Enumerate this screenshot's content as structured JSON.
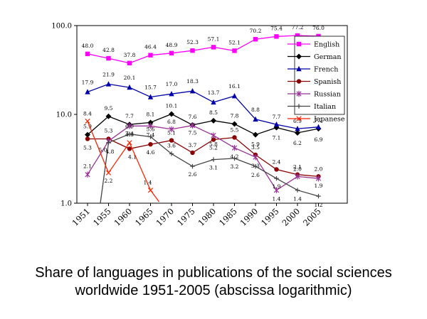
{
  "caption": {
    "line1": "Share of languages in publications of the social sciences",
    "line2": "worldwide 1951-2005 (abscissa logarithmic)"
  },
  "chart_data": {
    "type": "line",
    "x": [
      1951,
      1955,
      1960,
      1965,
      1970,
      1975,
      1980,
      1985,
      1990,
      1995,
      2000,
      2005
    ],
    "y_ticks": [
      "100.0",
      "10.0",
      "1.0"
    ],
    "y_scale": "log",
    "ylim": [
      1,
      100
    ],
    "grid": "none",
    "legend_position": "top-right",
    "series": [
      {
        "name": "English",
        "color": "#ff00ff",
        "marker": "square",
        "points": [
          [
            1951,
            48.0
          ],
          [
            1955,
            42.8
          ],
          [
            1960,
            37.8
          ],
          [
            1965,
            46.4
          ],
          [
            1970,
            48.9
          ],
          [
            1975,
            52.3
          ],
          [
            1980,
            57.1
          ],
          [
            1985,
            52.1
          ],
          [
            1990,
            70.2
          ],
          [
            1995,
            75.4
          ],
          [
            2000,
            77.2
          ],
          [
            2005,
            76.0
          ]
        ]
      },
      {
        "name": "German",
        "color": "#000000",
        "marker": "diamond",
        "points": [
          [
            1951,
            5.9
          ],
          [
            1955,
            9.5
          ],
          [
            1960,
            7.7
          ],
          [
            1965,
            8.1
          ],
          [
            1970,
            10.1
          ],
          [
            1975,
            7.6
          ],
          [
            1980,
            8.5
          ],
          [
            1985,
            7.8
          ],
          [
            1990,
            5.9
          ],
          [
            1995,
            7.1
          ],
          [
            2000,
            6.2
          ],
          [
            2005,
            6.9
          ]
        ]
      },
      {
        "name": "French",
        "color": "#0000aa",
        "marker": "triangle",
        "points": [
          [
            1951,
            17.9
          ],
          [
            1955,
            21.9
          ],
          [
            1960,
            20.1
          ],
          [
            1965,
            15.7
          ],
          [
            1970,
            17.0
          ],
          [
            1975,
            18.3
          ],
          [
            1980,
            13.7
          ],
          [
            1985,
            16.1
          ],
          [
            1990,
            8.8
          ],
          [
            1995,
            7.7
          ],
          [
            2000,
            6.9
          ],
          [
            2005,
            7.2
          ]
        ]
      },
      {
        "name": "Spanish",
        "color": "#8b0000",
        "marker": "circle",
        "points": [
          [
            1951,
            5.3
          ],
          [
            1955,
            5.3
          ],
          [
            1960,
            4.1
          ],
          [
            1965,
            4.6
          ],
          [
            1970,
            5.1
          ],
          [
            1975,
            3.7
          ],
          [
            1980,
            5.2
          ],
          [
            1985,
            5.5
          ],
          [
            1990,
            3.5
          ],
          [
            1995,
            2.4
          ],
          [
            2000,
            2.1
          ],
          [
            2005,
            2.0
          ]
        ]
      },
      {
        "name": "Russian",
        "color": "#993399",
        "marker": "star",
        "points": [
          [
            1951,
            2.1
          ],
          [
            1955,
            5.0
          ],
          [
            1960,
            7.4
          ],
          [
            1965,
            7.4
          ],
          [
            1970,
            6.8
          ],
          [
            1975,
            7.5
          ],
          [
            1980,
            5.8
          ],
          [
            1985,
            4.2
          ],
          [
            1990,
            3.3
          ],
          [
            1995,
            1.4
          ],
          [
            2000,
            2.0
          ],
          [
            2005,
            1.9
          ]
        ]
      },
      {
        "name": "Italian",
        "color": "#444444",
        "marker": "plus",
        "points": [
          [
            1955,
            4.8
          ],
          [
            1960,
            6.0
          ],
          [
            1965,
            5.6
          ],
          [
            1970,
            3.6
          ],
          [
            1975,
            2.6
          ],
          [
            1980,
            3.1
          ],
          [
            1985,
            3.2
          ],
          [
            1990,
            2.6
          ],
          [
            1995,
            1.9
          ],
          [
            2000,
            1.4
          ],
          [
            2005,
            1.2
          ]
        ]
      },
      {
        "name": "Japanese",
        "color": "#ff2200",
        "marker": "x",
        "points": [
          [
            1951,
            8.4
          ],
          [
            1955,
            2.2
          ],
          [
            1960,
            4.8
          ],
          [
            1965,
            1.4
          ]
        ]
      }
    ]
  }
}
